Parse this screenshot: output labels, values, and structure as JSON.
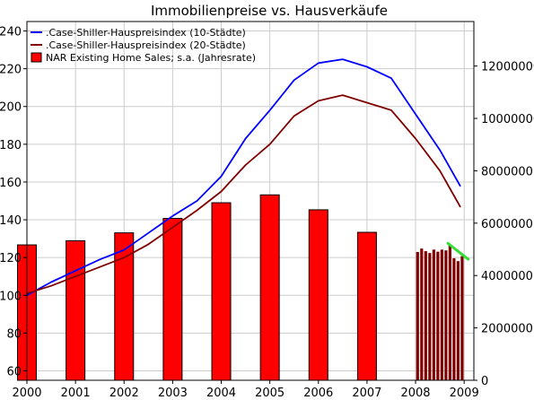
{
  "chart_data": {
    "type": "bar",
    "title": "Immobilienpreise vs. Hausverkäufe",
    "xlabel": "",
    "ylabel_left": "",
    "ylabel_right": "",
    "x_ticks": [
      "2000",
      "2001",
      "2002",
      "2003",
      "2004",
      "2005",
      "2006",
      "2007",
      "2008",
      "2009"
    ],
    "y_left": {
      "range": [
        55,
        245
      ],
      "ticks": [
        "60",
        "80",
        "100",
        "120",
        "140",
        "160",
        "180",
        "200",
        "220",
        "240"
      ]
    },
    "y_right": {
      "range": [
        0,
        13700000
      ],
      "ticks": [
        "0",
        "2000000",
        "4000000",
        "6000000",
        "8000000",
        "10000000",
        "12000000"
      ]
    },
    "x_range": [
      2000,
      2009.2
    ],
    "grid": true,
    "legend": {
      "placement": "top-left",
      "entries": [
        {
          "label": ".Case-Shiller-Hauspreisindex (10-Städte)",
          "color": "#0000ff",
          "marker": "line"
        },
        {
          "label": ".Case-Shiller-Hauspreisindex (20-Städte)",
          "color": "#800000",
          "marker": "line"
        },
        {
          "label": "NAR Existing Home Sales; s.a. (Jahresrate)",
          "color": "#ff0000",
          "marker": "box"
        }
      ]
    },
    "annual_bars": {
      "name": "NAR Existing Home Sales; s.a. (Jahresrate)",
      "color": "#ff0000",
      "x": [
        "2000",
        "2001",
        "2002",
        "2003",
        "2004",
        "2005",
        "2006",
        "2007"
      ],
      "values": [
        5170000,
        5330000,
        5630000,
        6180000,
        6780000,
        7080000,
        6510000,
        5650000
      ]
    },
    "monthly_bars": {
      "color": "#800000",
      "x": [
        "2008-01",
        "2008-02",
        "2008-03",
        "2008-04",
        "2008-05",
        "2008-06",
        "2008-07",
        "2008-08",
        "2008-09",
        "2008-10",
        "2008-11",
        "2008-12"
      ],
      "values": [
        4900000,
        5030000,
        4930000,
        4860000,
        4990000,
        4910000,
        4990000,
        4960000,
        5180000,
        4660000,
        4550000,
        4740000
      ]
    },
    "series": [
      {
        "name": ".Case-Shiller-Hauspreisindex (10-Städte)",
        "color": "#0000ff",
        "x": [
          "2000-01",
          "2000-07",
          "2001-01",
          "2001-07",
          "2002-01",
          "2002-07",
          "2003-01",
          "2003-07",
          "2004-01",
          "2004-07",
          "2005-01",
          "2005-07",
          "2006-01",
          "2006-07",
          "2007-01",
          "2007-07",
          "2008-01",
          "2008-07",
          "2008-12"
        ],
        "values": [
          100,
          107,
          113,
          119,
          124,
          133,
          142,
          150,
          163,
          183,
          198,
          214,
          223,
          225,
          221,
          215,
          196,
          177,
          158
        ]
      },
      {
        "name": ".Case-Shiller-Hauspreisindex (20-Städte)",
        "color": "#800000",
        "x": [
          "2000-01",
          "2000-07",
          "2001-01",
          "2001-07",
          "2002-01",
          "2002-07",
          "2003-01",
          "2003-07",
          "2004-01",
          "2004-07",
          "2005-01",
          "2005-07",
          "2006-01",
          "2006-07",
          "2007-01",
          "2007-07",
          "2008-01",
          "2008-07",
          "2008-12"
        ],
        "values": [
          101,
          105,
          110,
          115,
          120,
          127,
          136,
          145,
          155,
          169,
          180,
          195,
          203,
          206,
          202,
          198,
          183,
          166,
          147
        ]
      },
      {
        "name": "",
        "color": "#33dd33",
        "x": [
          "2008-09",
          "2009-02"
        ],
        "values": [
          5230000,
          4620000
        ]
      }
    ]
  }
}
